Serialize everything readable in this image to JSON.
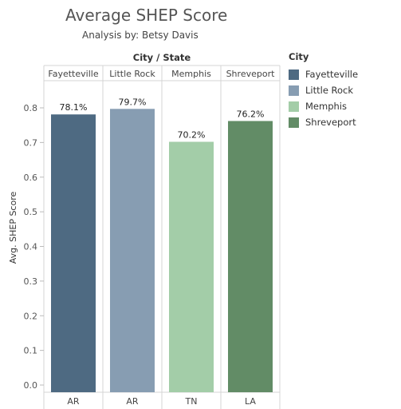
{
  "chart_data": {
    "type": "bar",
    "title": "Average SHEP Score",
    "subtitle": "Analysis by: Betsy Davis",
    "column_header_title": "City / State",
    "ylabel": "Avg. SHEP Score",
    "ylim": [
      0,
      0.8
    ],
    "yticks": [
      0.0,
      0.1,
      0.2,
      0.3,
      0.4,
      0.5,
      0.6,
      0.7,
      0.8
    ],
    "ytick_labels": [
      "0.0",
      "0.1",
      "0.2",
      "0.3",
      "0.4",
      "0.5",
      "0.6",
      "0.7",
      "0.8"
    ],
    "categories": [
      "Fayetteville",
      "Little Rock",
      "Memphis",
      "Shreveport"
    ],
    "states": [
      "AR",
      "AR",
      "TN",
      "LA"
    ],
    "values": [
      0.781,
      0.797,
      0.702,
      0.762
    ],
    "data_labels": [
      "78.1%",
      "79.7%",
      "70.2%",
      "76.2%"
    ],
    "colors": [
      "#4e6a82",
      "#879db2",
      "#a3cda8",
      "#628c66"
    ],
    "legend": {
      "title": "City",
      "position": "right",
      "entries": [
        "Fayetteville",
        "Little Rock",
        "Memphis",
        "Shreveport"
      ]
    },
    "grid": false
  }
}
